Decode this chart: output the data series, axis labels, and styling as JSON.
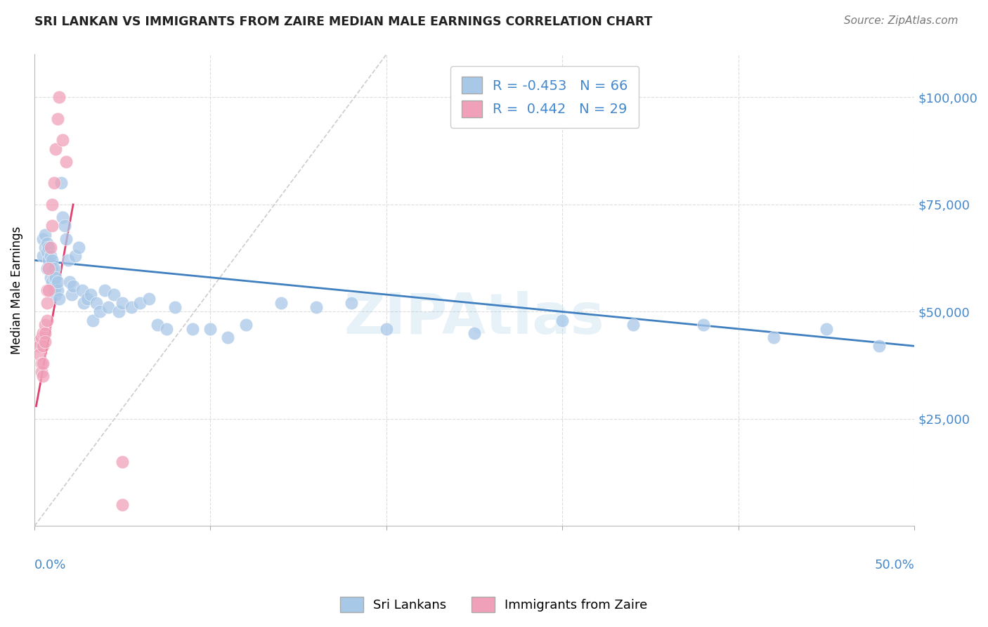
{
  "title": "SRI LANKAN VS IMMIGRANTS FROM ZAIRE MEDIAN MALE EARNINGS CORRELATION CHART",
  "source": "Source: ZipAtlas.com",
  "ylabel": "Median Male Earnings",
  "yticks": [
    25000,
    50000,
    75000,
    100000
  ],
  "ytick_labels": [
    "$25,000",
    "$50,000",
    "$75,000",
    "$100,000"
  ],
  "legend_label1": "Sri Lankans",
  "legend_label2": "Immigrants from Zaire",
  "R1": -0.453,
  "N1": 66,
  "R2": 0.442,
  "N2": 29,
  "blue_color": "#a8c8e8",
  "pink_color": "#f0a0b8",
  "blue_line_color": "#4080c0",
  "pink_line_color": "#e04070",
  "diag_line_color": "#cccccc",
  "axis_label_color": "#4488cc",
  "watermark": "ZIPAtlas",
  "watermark_color": "#88bbdd",
  "xmin": 0.0,
  "xmax": 0.5,
  "ymin": 0,
  "ymax": 110000,
  "xticks": [
    0.0,
    0.1,
    0.2,
    0.3,
    0.4,
    0.5
  ],
  "sri_lankans_x": [
    0.005,
    0.005,
    0.006,
    0.006,
    0.007,
    0.007,
    0.007,
    0.008,
    0.008,
    0.009,
    0.009,
    0.01,
    0.01,
    0.01,
    0.011,
    0.011,
    0.011,
    0.012,
    0.012,
    0.012,
    0.013,
    0.013,
    0.014,
    0.015,
    0.016,
    0.017,
    0.018,
    0.019,
    0.02,
    0.021,
    0.022,
    0.023,
    0.025,
    0.027,
    0.028,
    0.03,
    0.032,
    0.033,
    0.035,
    0.037,
    0.04,
    0.042,
    0.045,
    0.048,
    0.05,
    0.055,
    0.06,
    0.065,
    0.07,
    0.075,
    0.08,
    0.09,
    0.1,
    0.11,
    0.12,
    0.14,
    0.16,
    0.18,
    0.2,
    0.25,
    0.3,
    0.34,
    0.38,
    0.42,
    0.45,
    0.48
  ],
  "sri_lankans_y": [
    67000,
    63000,
    65000,
    68000,
    66000,
    64000,
    60000,
    62000,
    65000,
    58000,
    63000,
    60000,
    57000,
    62000,
    58000,
    55000,
    60000,
    56000,
    58000,
    54000,
    55000,
    57000,
    53000,
    80000,
    72000,
    70000,
    67000,
    62000,
    57000,
    54000,
    56000,
    63000,
    65000,
    55000,
    52000,
    53000,
    54000,
    48000,
    52000,
    50000,
    55000,
    51000,
    54000,
    50000,
    52000,
    51000,
    52000,
    53000,
    47000,
    46000,
    51000,
    46000,
    46000,
    44000,
    47000,
    52000,
    51000,
    52000,
    46000,
    45000,
    48000,
    47000,
    47000,
    44000,
    46000,
    42000
  ],
  "zaire_x": [
    0.002,
    0.003,
    0.003,
    0.004,
    0.004,
    0.004,
    0.005,
    0.005,
    0.005,
    0.005,
    0.006,
    0.006,
    0.006,
    0.007,
    0.007,
    0.007,
    0.008,
    0.008,
    0.009,
    0.01,
    0.01,
    0.011,
    0.012,
    0.013,
    0.014,
    0.016,
    0.018,
    0.05,
    0.05
  ],
  "zaire_y": [
    43000,
    42000,
    40000,
    38000,
    44000,
    36000,
    45000,
    42000,
    38000,
    35000,
    47000,
    45000,
    43000,
    55000,
    52000,
    48000,
    60000,
    55000,
    65000,
    75000,
    70000,
    80000,
    88000,
    95000,
    100000,
    90000,
    85000,
    5000,
    15000
  ],
  "blue_trend_x": [
    0.0,
    0.5
  ],
  "blue_trend_y": [
    62000,
    42000
  ],
  "pink_trend_x": [
    0.001,
    0.022
  ],
  "pink_trend_y": [
    28000,
    75000
  ]
}
